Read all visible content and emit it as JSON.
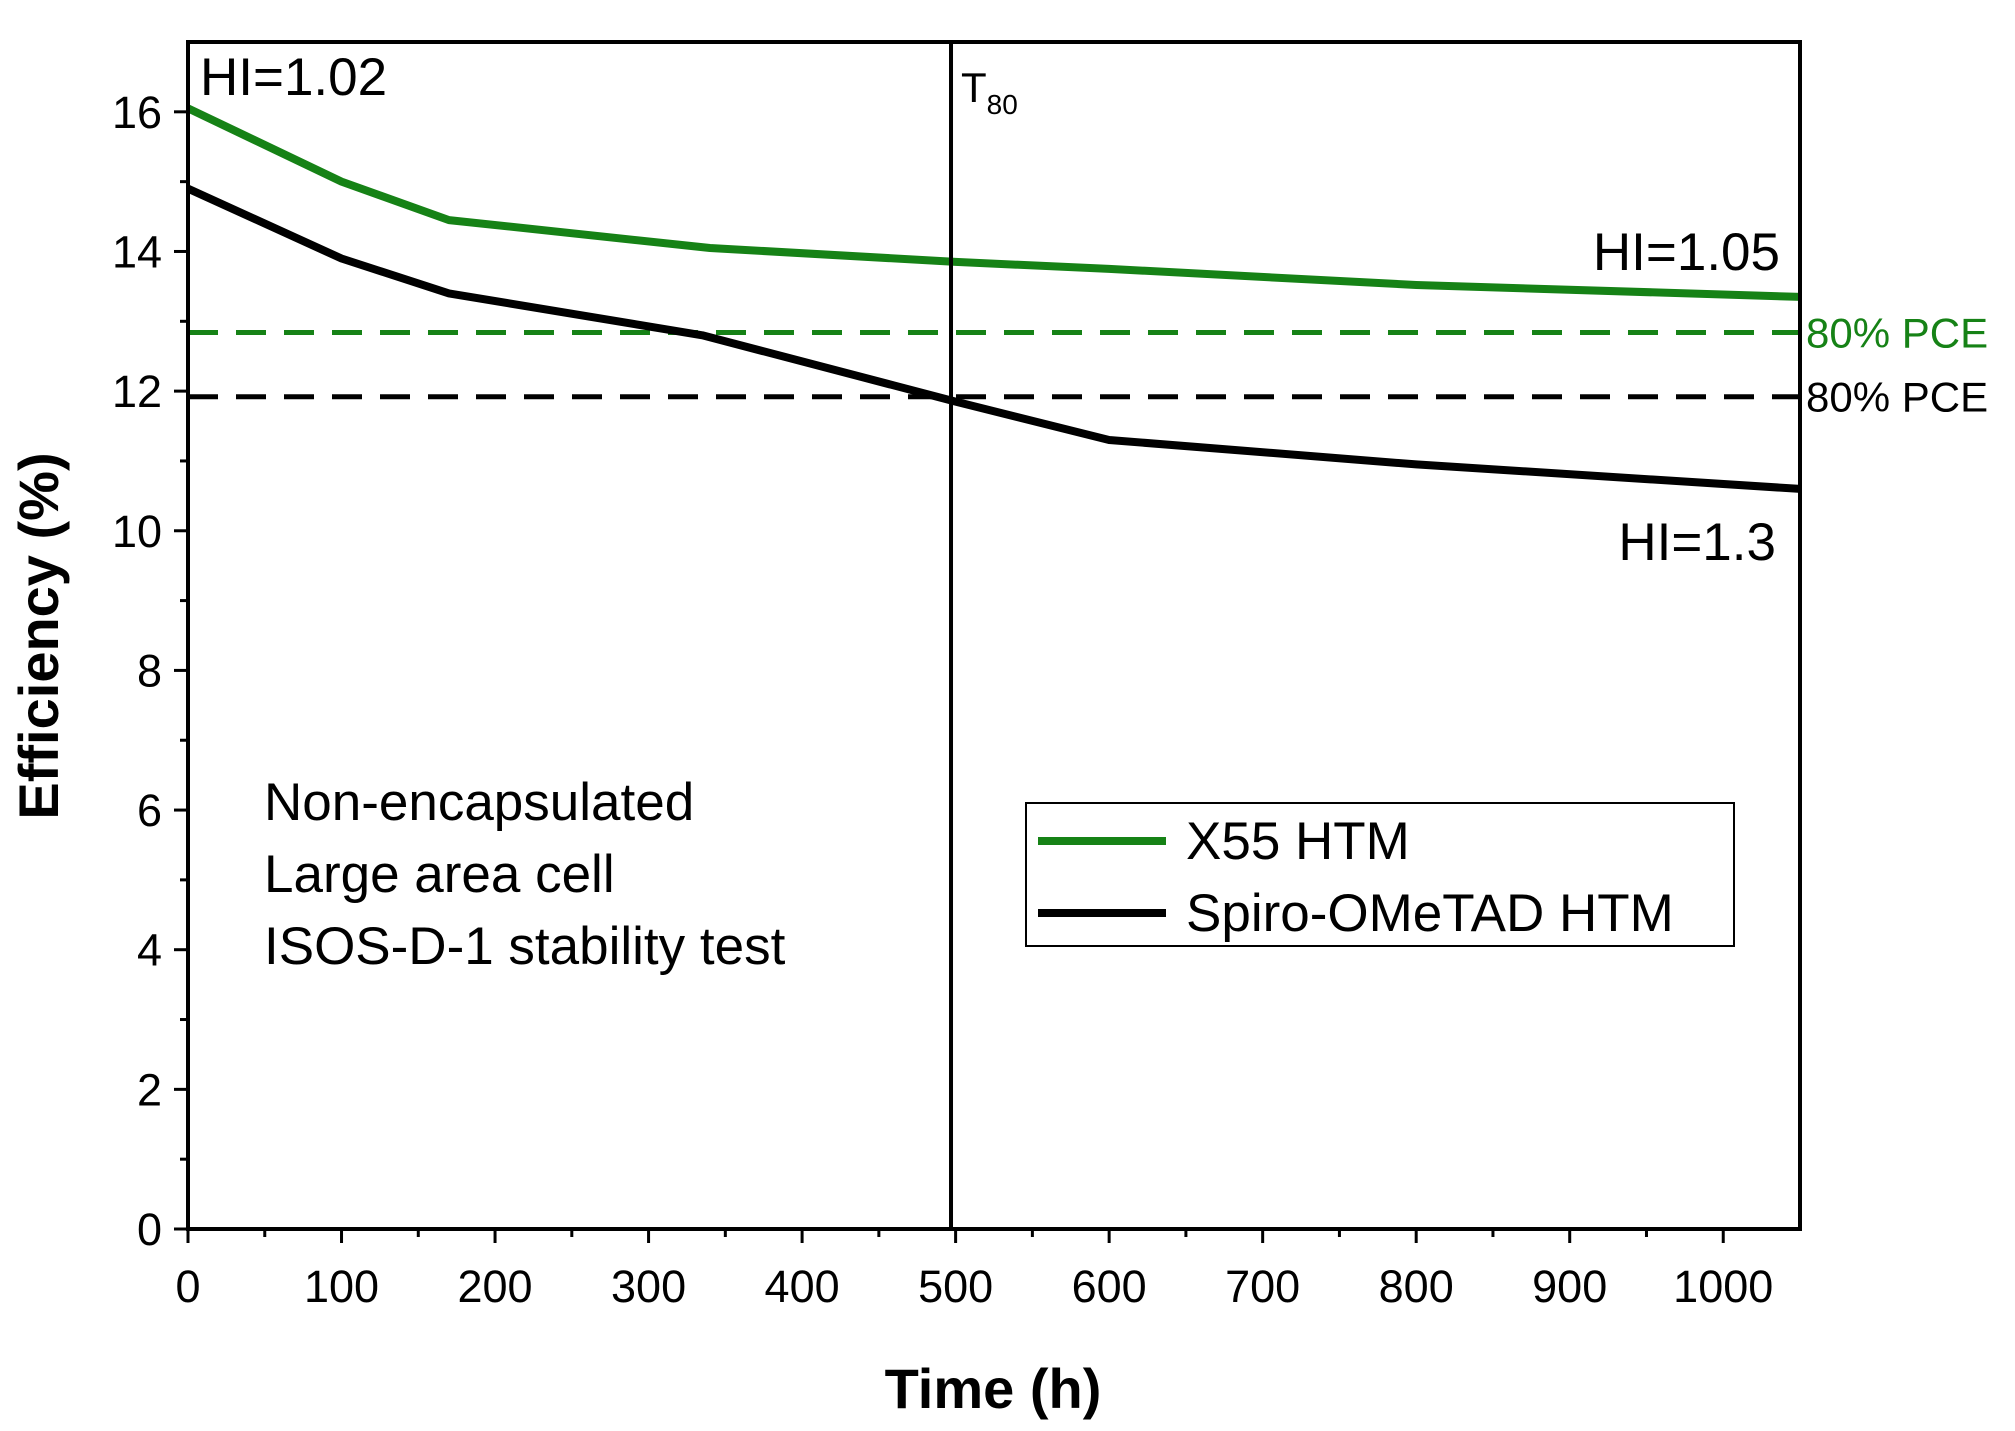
{
  "chart_data": {
    "type": "line",
    "title": "",
    "xlabel": "Time (h)",
    "ylabel": "Efficiency (%)",
    "xlim": [
      0,
      1050
    ],
    "ylim": [
      0,
      17
    ],
    "x_ticks": [
      0,
      100,
      200,
      300,
      400,
      500,
      600,
      700,
      800,
      900,
      1000
    ],
    "y_ticks": [
      0,
      2,
      4,
      6,
      8,
      10,
      12,
      14,
      16
    ],
    "grid": false,
    "legend_position": "bottom-right",
    "series": [
      {
        "name": "X55 HTM",
        "color": "#168216",
        "x": [
          0,
          100,
          170,
          340,
          500,
          600,
          800,
          1050
        ],
        "values": [
          16.05,
          15.0,
          14.45,
          14.05,
          13.85,
          13.75,
          13.52,
          13.35
        ]
      },
      {
        "name": "Spiro-OMeTAD HTM",
        "color": "#000000",
        "x": [
          0,
          100,
          170,
          335,
          500,
          600,
          800,
          1050
        ],
        "values": [
          14.9,
          13.9,
          13.4,
          12.8,
          11.85,
          11.3,
          10.95,
          10.6
        ]
      }
    ],
    "reference_lines": [
      {
        "label": "80% PCE",
        "value": 12.84,
        "color": "#168216",
        "style": "dashed"
      },
      {
        "label": "80% PCE",
        "value": 11.92,
        "color": "#000000",
        "style": "dashed"
      }
    ],
    "vertical_marker": {
      "label": "T",
      "subscript": "80",
      "x": 497
    },
    "annotations": {
      "hi_start": "HI=1.02",
      "hi_x55_end": "HI=1.05",
      "hi_spiro_end": "HI=1.3",
      "conditions": [
        "Non-encapsulated",
        "Large area cell",
        "ISOS-D-1 stability test"
      ]
    }
  }
}
